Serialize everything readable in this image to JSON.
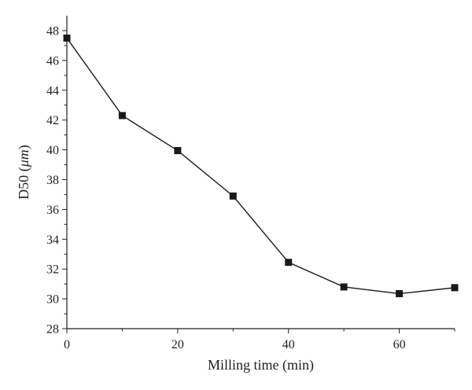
{
  "chart_data": {
    "type": "line",
    "xlabel": "Milling time (min)",
    "ylabel_prefix": "D50 (",
    "ylabel_unit": "μm",
    "ylabel_suffix": ")",
    "xlim": [
      0,
      70
    ],
    "ylim": [
      28,
      49
    ],
    "xticks": [
      0,
      20,
      40,
      60
    ],
    "xminor": [
      10,
      30,
      50,
      70
    ],
    "yticks": [
      28,
      30,
      32,
      34,
      36,
      38,
      40,
      42,
      44,
      46,
      48
    ],
    "grid": false,
    "marker": "square",
    "series": [
      {
        "x": [
          0,
          10,
          20,
          30,
          40,
          50,
          60,
          70
        ],
        "y": [
          47.5,
          42.3,
          39.95,
          36.9,
          32.45,
          30.8,
          30.35,
          30.75
        ]
      }
    ]
  }
}
